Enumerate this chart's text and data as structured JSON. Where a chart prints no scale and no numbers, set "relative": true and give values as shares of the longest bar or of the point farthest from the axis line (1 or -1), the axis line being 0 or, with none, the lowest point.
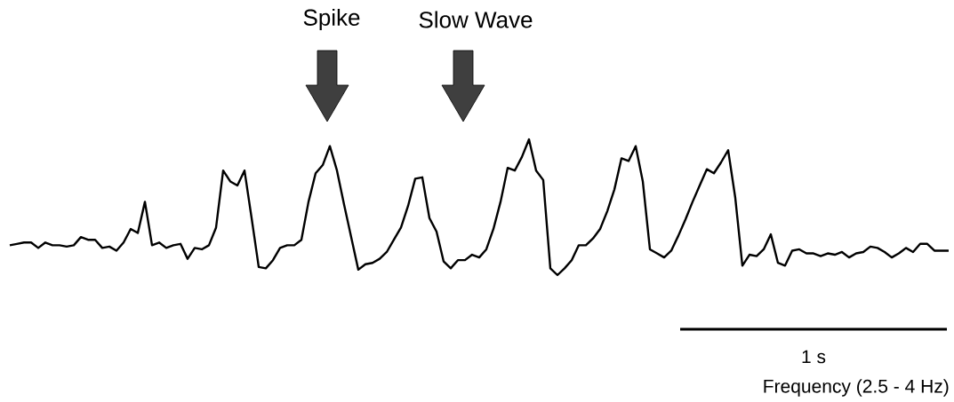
{
  "chart_data": {
    "type": "line",
    "relative": true,
    "tick_labels": false,
    "annotations": [
      "Spike",
      "Slow Wave",
      "1 s",
      "Frequency (2.5 - 4 Hz)"
    ],
    "categories": [
      null,
      null,
      null,
      null,
      null,
      null,
      null,
      null,
      null,
      null,
      null,
      null,
      null,
      null,
      null,
      null,
      null,
      null,
      null,
      null,
      null,
      null,
      null,
      null,
      null,
      null,
      null,
      null,
      null,
      null,
      null,
      null,
      null,
      null,
      null,
      null,
      null,
      null,
      null,
      null,
      null,
      null,
      null,
      null,
      null,
      null,
      null,
      null,
      null,
      null,
      null,
      null,
      null,
      null,
      null,
      null,
      null,
      null,
      null,
      null,
      null,
      null,
      null,
      null,
      null,
      null,
      null,
      null,
      null,
      null,
      null,
      null,
      null,
      null,
      null,
      null,
      null,
      null,
      null,
      null,
      null,
      null,
      null,
      null,
      null,
      null,
      null,
      null,
      null,
      null,
      null,
      null,
      null,
      null,
      null,
      null,
      null,
      null,
      null,
      null,
      null,
      null,
      null,
      null,
      null,
      null,
      null,
      null,
      null,
      null,
      null,
      null,
      null,
      null,
      null,
      null,
      null,
      null,
      null,
      null,
      null,
      null,
      null,
      null,
      null,
      null,
      null,
      null,
      null,
      null,
      null,
      null,
      null
    ],
    "series": [
      {
        "color": "#000000",
        "values": [
          0.22,
          0.23,
          0.24,
          0.24,
          0.2,
          0.24,
          0.22,
          0.22,
          0.21,
          0.22,
          0.28,
          0.26,
          0.26,
          0.2,
          0.21,
          0.18,
          0.24,
          0.34,
          0.31,
          0.54,
          0.22,
          0.24,
          0.2,
          0.22,
          0.23,
          0.12,
          0.2,
          0.19,
          0.22,
          0.35,
          0.77,
          0.69,
          0.66,
          0.77,
          0.42,
          0.06,
          0.05,
          0.11,
          0.2,
          0.22,
          0.22,
          0.26,
          0.54,
          0.75,
          0.81,
          0.95,
          0.77,
          0.52,
          0.28,
          0.04,
          0.08,
          0.09,
          0.12,
          0.17,
          0.26,
          0.35,
          0.51,
          0.71,
          0.72,
          0.42,
          0.32,
          0.1,
          0.05,
          0.11,
          0.11,
          0.15,
          0.13,
          0.19,
          0.34,
          0.54,
          0.79,
          0.77,
          0.87,
          1.0,
          0.77,
          0.7,
          0.05,
          0.0,
          0.05,
          0.11,
          0.22,
          0.22,
          0.27,
          0.34,
          0.47,
          0.63,
          0.86,
          0.84,
          0.95,
          0.69,
          0.19,
          0.16,
          0.13,
          0.18,
          0.29,
          0.41,
          0.54,
          0.66,
          0.78,
          0.75,
          0.83,
          0.92,
          0.57,
          0.07,
          0.15,
          0.14,
          0.19,
          0.3,
          0.09,
          0.07,
          0.18,
          0.19,
          0.16,
          0.16,
          0.14,
          0.16,
          0.15,
          0.17,
          0.13,
          0.16,
          0.17,
          0.21,
          0.2,
          0.17,
          0.13,
          0.16,
          0.2,
          0.17,
          0.23,
          0.23,
          0.18,
          0.18,
          0.18
        ]
      }
    ]
  }
}
